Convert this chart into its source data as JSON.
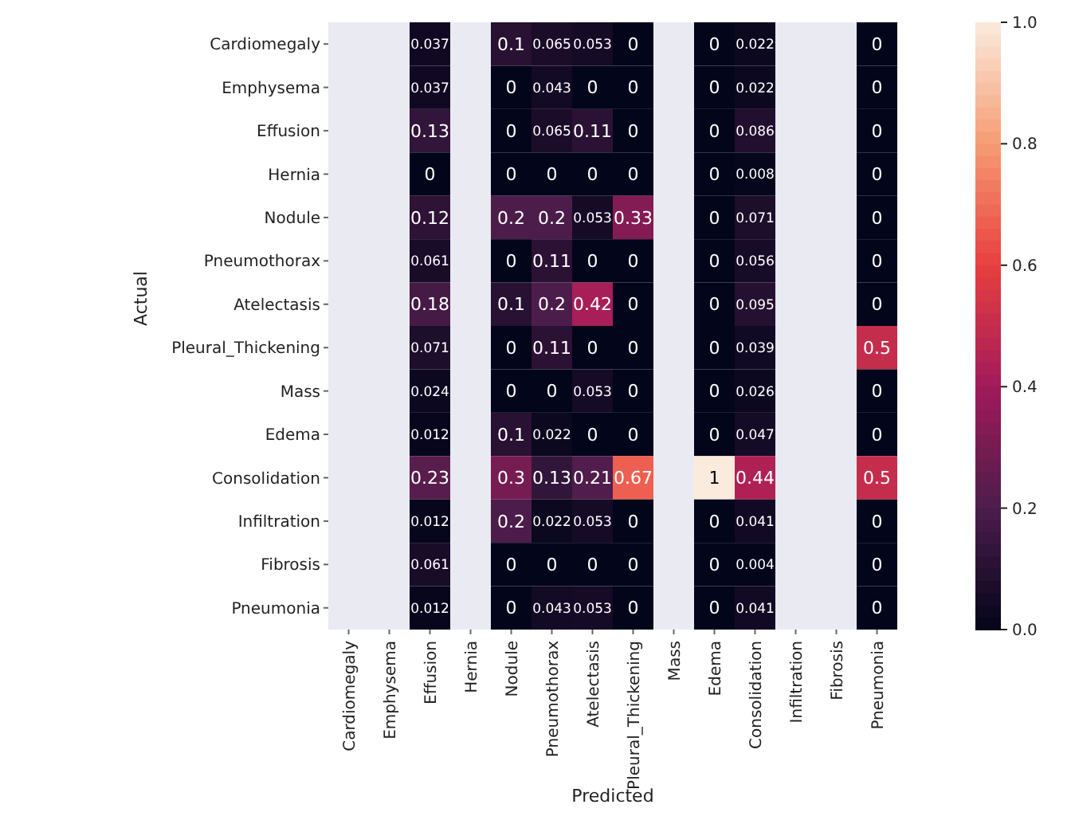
{
  "chart_data": {
    "type": "heatmap",
    "xlabel": "Predicted",
    "ylabel": "Actual",
    "categories": [
      "Cardiomegaly",
      "Emphysema",
      "Effusion",
      "Hernia",
      "Nodule",
      "Pneumothorax",
      "Atelectasis",
      "Pleural_Thickening",
      "Mass",
      "Edema",
      "Consolidation",
      "Infiltration",
      "Fibrosis",
      "Pneumonia"
    ],
    "y_categories": [
      "Cardiomegaly",
      "Emphysema",
      "Effusion",
      "Hernia",
      "Nodule",
      "Pneumothorax",
      "Atelectasis",
      "Pleural_Thickening",
      "Mass",
      "Edema",
      "Consolidation",
      "Infiltration",
      "Fibrosis",
      "Pneumonia"
    ],
    "cells": [
      [
        null,
        null,
        0.037,
        null,
        0.1,
        0.065,
        0.053,
        0,
        null,
        0,
        0.022,
        null,
        null,
        0
      ],
      [
        null,
        null,
        0.037,
        null,
        0,
        0.043,
        0,
        0,
        null,
        0,
        0.022,
        null,
        null,
        0
      ],
      [
        null,
        null,
        0.13,
        null,
        0,
        0.065,
        0.11,
        0,
        null,
        0,
        0.086,
        null,
        null,
        0
      ],
      [
        null,
        null,
        0,
        null,
        0,
        0,
        0,
        0,
        null,
        0,
        0.008,
        null,
        null,
        0
      ],
      [
        null,
        null,
        0.12,
        null,
        0.2,
        0.2,
        0.053,
        0.33,
        null,
        0,
        0.071,
        null,
        null,
        0
      ],
      [
        null,
        null,
        0.061,
        null,
        0,
        0.11,
        0,
        0,
        null,
        0,
        0.056,
        null,
        null,
        0
      ],
      [
        null,
        null,
        0.18,
        null,
        0.1,
        0.2,
        0.42,
        0,
        null,
        0,
        0.095,
        null,
        null,
        0
      ],
      [
        null,
        null,
        0.071,
        null,
        0,
        0.11,
        0,
        0,
        null,
        0,
        0.039,
        null,
        null,
        0.5
      ],
      [
        null,
        null,
        0.024,
        null,
        0,
        0,
        0.053,
        0,
        null,
        0,
        0.026,
        null,
        null,
        0
      ],
      [
        null,
        null,
        0.012,
        null,
        0.1,
        0.022,
        0,
        0,
        null,
        0,
        0.047,
        null,
        null,
        0
      ],
      [
        null,
        null,
        0.23,
        null,
        0.3,
        0.13,
        0.21,
        0.67,
        null,
        1,
        0.44,
        null,
        null,
        0.5
      ],
      [
        null,
        null,
        0.012,
        null,
        0.2,
        0.022,
        0.053,
        0,
        null,
        0,
        0.041,
        null,
        null,
        0
      ],
      [
        null,
        null,
        0.061,
        null,
        0,
        0,
        0,
        0,
        null,
        0,
        0.004,
        null,
        null,
        0
      ],
      [
        null,
        null,
        0.012,
        null,
        0,
        0.043,
        0.053,
        0,
        null,
        0,
        0.041,
        null,
        null,
        0
      ]
    ],
    "clim": [
      0,
      1
    ],
    "cticks": [
      {
        "value": 0,
        "label": "0.0"
      },
      0.2,
      0.4,
      0.6,
      0.8,
      {
        "value": 1,
        "label": "1.0"
      }
    ],
    "data_labels": true
  }
}
